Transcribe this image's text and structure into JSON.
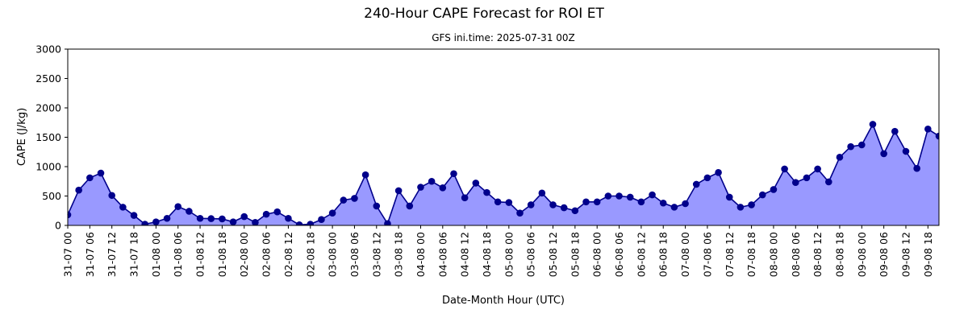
{
  "chart_data": {
    "type": "area",
    "title": "240-Hour CAPE Forecast for ROI ET",
    "subtitle": "GFS ini.time: 2025-07-31 00Z",
    "xlabel": "Date-Month Hour (UTC)",
    "ylabel": "CAPE (J/kg)",
    "ylim": [
      0,
      3000
    ],
    "yticks": [
      0,
      500,
      1000,
      1500,
      2000,
      2500,
      3000
    ],
    "grid": false,
    "legend": "none",
    "colors": {
      "line": "#00008b",
      "fill": "#9999ff",
      "marker": "#00008b"
    },
    "x_step_hours": 3,
    "x_tick_every": 2,
    "x_labels": [
      "31-07 00",
      "31-07 06",
      "31-07 12",
      "31-07 18",
      "01-08 00",
      "01-08 06",
      "01-08 12",
      "01-08 18",
      "02-08 00",
      "02-08 06",
      "02-08 12",
      "02-08 18",
      "03-08 00",
      "03-08 06",
      "03-08 12",
      "03-08 18",
      "04-08 00",
      "04-08 06",
      "04-08 12",
      "04-08 18",
      "05-08 00",
      "05-08 06",
      "05-08 12",
      "05-08 18",
      "06-08 00",
      "06-08 06",
      "06-08 12",
      "06-08 18",
      "07-08 00",
      "07-08 06",
      "07-08 12",
      "07-08 18",
      "08-08 00",
      "08-08 06",
      "08-08 12",
      "08-08 18",
      "09-08 00",
      "09-08 06",
      "09-08 12",
      "09-08 18"
    ],
    "values": [
      180,
      600,
      810,
      890,
      510,
      310,
      170,
      20,
      60,
      120,
      320,
      240,
      120,
      115,
      110,
      60,
      150,
      50,
      190,
      230,
      120,
      10,
      20,
      100,
      210,
      430,
      460,
      860,
      330,
      30,
      590,
      330,
      650,
      750,
      640,
      880,
      470,
      720,
      560,
      400,
      390,
      210,
      350,
      550,
      350,
      300,
      250,
      400,
      400,
      500,
      500,
      480,
      400,
      520,
      380,
      310,
      370,
      700,
      810,
      900,
      480,
      310,
      350,
      520,
      610,
      960,
      730,
      810,
      960,
      740,
      1160,
      1340,
      1370,
      1720,
      1220,
      1600,
      1260,
      970,
      1640,
      1520
    ]
  }
}
